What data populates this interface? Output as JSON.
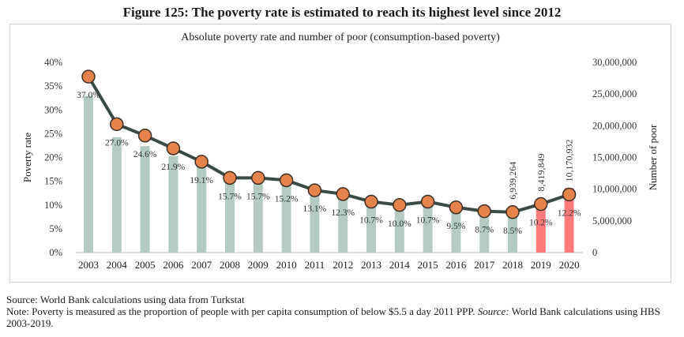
{
  "figure": {
    "title": "Figure 125: The poverty rate is estimated to reach its highest level since 2012"
  },
  "notes": {
    "source": "Source: World Bank calculations using data from Turkstat",
    "note_prefix": "Note: Poverty is measured as the proportion of people with per capita consumption of below $5.5 a day 2011 PPP. ",
    "note_source_label": "Source:",
    "note_suffix": " World Bank calculations using HBS 2003-2019."
  },
  "colors": {
    "bar_actual": "#b3cbc1",
    "bar_estimate": "#ff7b7b",
    "line": "#3a4a45",
    "marker_fill": "#e5834d",
    "marker_stroke": "#3a2e25"
  },
  "chart_data": {
    "type": "bar+line",
    "title": "Absolute poverty rate and number of poor (consumption-based poverty)",
    "categories": [
      "2003",
      "2004",
      "2005",
      "2006",
      "2007",
      "2008",
      "2009",
      "2010",
      "2011",
      "2012",
      "2013",
      "2014",
      "2015",
      "2016",
      "2017",
      "2018",
      "2019",
      "2020"
    ],
    "series": [
      {
        "name": "Poverty rate",
        "type": "line",
        "axis": "left",
        "values": [
          37.0,
          27.0,
          24.6,
          21.9,
          19.1,
          15.7,
          15.7,
          15.2,
          13.1,
          12.3,
          10.7,
          10.0,
          10.7,
          9.5,
          8.7,
          8.5,
          10.2,
          12.2
        ],
        "labels": [
          "37.0%",
          "27.0%",
          "24.6%",
          "21.9%",
          "19.1%",
          "15.7%",
          "15.7%",
          "15.2%",
          "13.1%",
          "12.3%",
          "10.7%",
          "10.0%",
          "10.7%",
          "9.5%",
          "8.7%",
          "8.5%",
          "10.2%",
          "12.2%"
        ]
      },
      {
        "name": "Number of poor",
        "type": "bar",
        "axis": "right",
        "values": [
          24700000,
          18200000,
          16800000,
          15200000,
          13500000,
          11200000,
          11300000,
          11100000,
          9800000,
          9100000,
          8000000,
          7600000,
          8200000,
          7400000,
          6900000,
          6939264,
          8419849,
          10170932
        ],
        "labels": [
          "",
          "",
          "",
          "",
          "",
          "",
          "",
          "",
          "",
          "",
          "",
          "",
          "",
          "",
          "",
          "6,939,264",
          "8,419,849",
          "10,170,932"
        ],
        "estimated": [
          false,
          false,
          false,
          false,
          false,
          false,
          false,
          false,
          false,
          false,
          false,
          false,
          false,
          false,
          false,
          false,
          true,
          true
        ]
      }
    ],
    "ylabel_left": "Poverty rate",
    "ylabel_right": "Number of poor",
    "ylim_left": [
      0,
      40
    ],
    "ylim_right": [
      0,
      30000000
    ],
    "yticks_left": [
      "0%",
      "5%",
      "10%",
      "15%",
      "20%",
      "25%",
      "30%",
      "35%",
      "40%"
    ],
    "yticks_right": [
      "0",
      "5,000,000",
      "10,000,000",
      "15,000,000",
      "20,000,000",
      "25,000,000",
      "30,000,000"
    ],
    "grid": false,
    "legend": "none"
  }
}
